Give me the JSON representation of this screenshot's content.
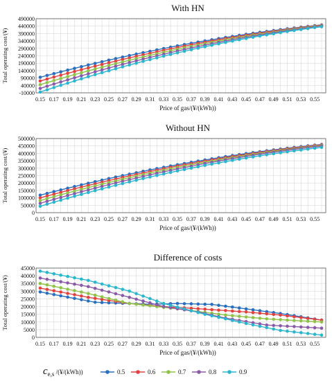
{
  "colors": {
    "s05": "#2a6ebf",
    "s06": "#e2413f",
    "s07": "#8fc348",
    "s08": "#8a5aa8",
    "s09": "#2ab6cf"
  },
  "legend": {
    "title_main": "c",
    "title_sub": "e,s",
    "title_unit": "/(¥/(kWh))"
  },
  "chart_data": [
    {
      "type": "line",
      "title": "With HN",
      "xlabel": "Price of gas/(¥/(kWh))",
      "ylabel": "Total operating cost/(¥)",
      "x": [
        0.15,
        0.16,
        0.17,
        0.18,
        0.19,
        0.2,
        0.21,
        0.22,
        0.23,
        0.24,
        0.25,
        0.26,
        0.27,
        0.28,
        0.29,
        0.3,
        0.31,
        0.32,
        0.33,
        0.34,
        0.35,
        0.36,
        0.37,
        0.38,
        0.39,
        0.4,
        0.41,
        0.42,
        0.43,
        0.44,
        0.45,
        0.46,
        0.47,
        0.48,
        0.49,
        0.5,
        0.51,
        0.52,
        0.53,
        0.54,
        0.55,
        0.56
      ],
      "xticks": [
        "0.15",
        "0.17",
        "0.19",
        "0.21",
        "0.23",
        "0.25",
        "0.27",
        "0.29",
        "0.31",
        "0.33",
        "0.35",
        "0.37",
        "0.39",
        "0.41",
        "0.43",
        "0.45",
        "0.47",
        "0.49",
        "0.51",
        "0.53",
        "0.55"
      ],
      "yticks": [
        -10000,
        40000,
        90000,
        140000,
        190000,
        240000,
        290000,
        340000,
        390000,
        440000,
        490000
      ],
      "ylim": [
        -10000,
        490000
      ],
      "grid": true,
      "series": [
        {
          "name": "0.5",
          "start": 95000,
          "end": 448000,
          "curve": 0.9
        },
        {
          "name": "0.6",
          "start": 70000,
          "end": 446000,
          "curve": 0.9
        },
        {
          "name": "0.7",
          "start": 45000,
          "end": 443000,
          "curve": 0.9
        },
        {
          "name": "0.8",
          "start": 20000,
          "end": 440000,
          "curve": 0.9
        },
        {
          "name": "0.9",
          "start": -5000,
          "end": 436000,
          "curve": 0.9
        }
      ]
    },
    {
      "type": "line",
      "title": "Without HN",
      "xlabel": "Price of gas/(¥/(kWh))",
      "ylabel": "Total operating cost/(¥)",
      "x": [
        0.15,
        0.16,
        0.17,
        0.18,
        0.19,
        0.2,
        0.21,
        0.22,
        0.23,
        0.24,
        0.25,
        0.26,
        0.27,
        0.28,
        0.29,
        0.3,
        0.31,
        0.32,
        0.33,
        0.34,
        0.35,
        0.36,
        0.37,
        0.38,
        0.39,
        0.4,
        0.41,
        0.42,
        0.43,
        0.44,
        0.45,
        0.46,
        0.47,
        0.48,
        0.49,
        0.5,
        0.51,
        0.52,
        0.53,
        0.54,
        0.55,
        0.56
      ],
      "xticks": [
        "0.15",
        "0.17",
        "0.19",
        "0.21",
        "0.23",
        "0.25",
        "0.27",
        "0.29",
        "0.31",
        "0.33",
        "0.35",
        "0.37",
        "0.39",
        "0.41",
        "0.43",
        "0.45",
        "0.47",
        "0.49",
        "0.51",
        "0.53",
        "0.55"
      ],
      "yticks": [
        0,
        50000,
        100000,
        150000,
        200000,
        250000,
        300000,
        350000,
        400000,
        450000,
        500000
      ],
      "ylim": [
        0,
        500000
      ],
      "grid": true,
      "series": [
        {
          "name": "0.5",
          "start": 118000,
          "end": 460000,
          "curve": 0.9
        },
        {
          "name": "0.6",
          "start": 100000,
          "end": 457000,
          "curve": 0.9
        },
        {
          "name": "0.7",
          "start": 82000,
          "end": 453000,
          "curve": 0.9
        },
        {
          "name": "0.8",
          "start": 63000,
          "end": 449000,
          "curve": 0.9
        },
        {
          "name": "0.9",
          "start": 43000,
          "end": 440000,
          "curve": 0.9
        }
      ]
    },
    {
      "type": "line",
      "title": "Difference of costs",
      "xlabel": "Price of gas/(¥/(kWh))",
      "ylabel": "Total operating cost/(¥)",
      "x": [
        0.15,
        0.16,
        0.17,
        0.18,
        0.19,
        0.2,
        0.21,
        0.22,
        0.23,
        0.24,
        0.25,
        0.26,
        0.27,
        0.28,
        0.29,
        0.3,
        0.31,
        0.32,
        0.33,
        0.34,
        0.35,
        0.36,
        0.37,
        0.38,
        0.39,
        0.4,
        0.41,
        0.42,
        0.43,
        0.44,
        0.45,
        0.46,
        0.47,
        0.48,
        0.49,
        0.5,
        0.51,
        0.52,
        0.53,
        0.54,
        0.55,
        0.56
      ],
      "xticks": [
        "0.15",
        "0.17",
        "0.19",
        "0.21",
        "0.23",
        "0.25",
        "0.27",
        "0.29",
        "0.31",
        "0.33",
        "0.35",
        "0.37",
        "0.39",
        "0.41",
        "0.43",
        "0.45",
        "0.47",
        "0.49",
        "0.51",
        "0.53",
        "0.55"
      ],
      "yticks": [
        0,
        5000,
        10000,
        15000,
        20000,
        25000,
        30000,
        35000,
        40000,
        45000
      ],
      "ylim": [
        0,
        45000
      ],
      "grid": true,
      "series": [
        {
          "name": "0.5",
          "knots": [
            [
              0.15,
              29500
            ],
            [
              0.23,
              22800
            ],
            [
              0.31,
              21500
            ],
            [
              0.35,
              22000
            ],
            [
              0.4,
              21400
            ],
            [
              0.45,
              18500
            ],
            [
              0.5,
              15500
            ],
            [
              0.56,
              11200
            ]
          ]
        },
        {
          "name": "0.6",
          "knots": [
            [
              0.15,
              32000
            ],
            [
              0.22,
              26000
            ],
            [
              0.28,
              22000
            ],
            [
              0.33,
              20000
            ],
            [
              0.38,
              18600
            ],
            [
              0.45,
              16500
            ],
            [
              0.5,
              14500
            ],
            [
              0.56,
              11200
            ]
          ]
        },
        {
          "name": "0.7",
          "knots": [
            [
              0.15,
              35000
            ],
            [
              0.22,
              28500
            ],
            [
              0.28,
              22000
            ],
            [
              0.31,
              20500
            ],
            [
              0.36,
              18000
            ],
            [
              0.42,
              14500
            ],
            [
              0.48,
              12000
            ],
            [
              0.56,
              10000
            ]
          ]
        },
        {
          "name": "0.8",
          "knots": [
            [
              0.15,
              38500
            ],
            [
              0.22,
              33000
            ],
            [
              0.28,
              26000
            ],
            [
              0.33,
              20000
            ],
            [
              0.38,
              16500
            ],
            [
              0.42,
              12500
            ],
            [
              0.48,
              8000
            ],
            [
              0.56,
              6000
            ]
          ]
        },
        {
          "name": "0.9",
          "knots": [
            [
              0.15,
              43000
            ],
            [
              0.22,
              37000
            ],
            [
              0.28,
              30000
            ],
            [
              0.33,
              22000
            ],
            [
              0.39,
              15000
            ],
            [
              0.45,
              9000
            ],
            [
              0.5,
              4500
            ],
            [
              0.56,
              1500
            ]
          ]
        }
      ]
    }
  ]
}
